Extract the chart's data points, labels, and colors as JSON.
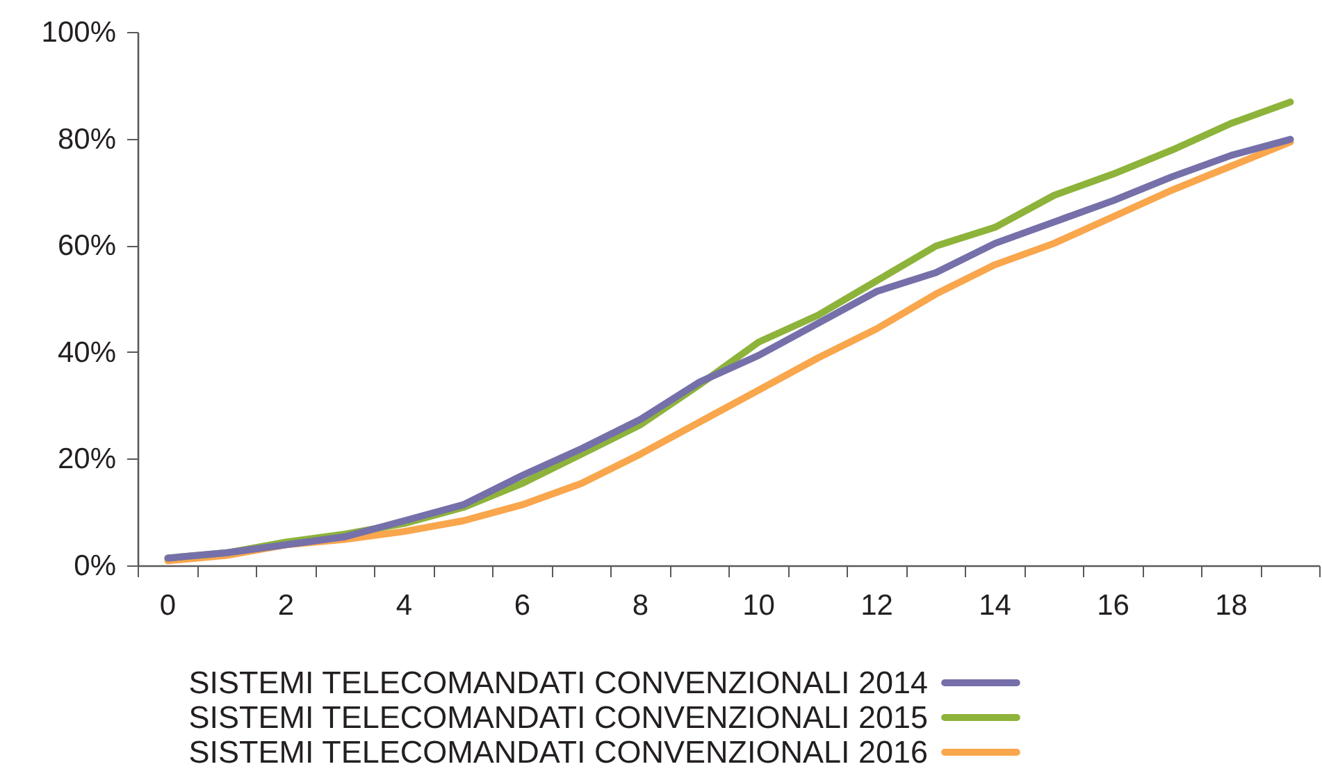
{
  "chart_data": {
    "type": "line",
    "categories": [
      "0",
      null,
      "2",
      null,
      "4",
      null,
      "6",
      null,
      "8",
      null,
      "10",
      null,
      "12",
      null,
      "14",
      null,
      "16",
      null,
      "18",
      null
    ],
    "series": [
      {
        "name": "SISTEMI TELECOMANDATI CONVENZIONALI 2014",
        "color": "#7570a9",
        "values": [
          1.5,
          2.5,
          4,
          5.5,
          8.5,
          11.5,
          17,
          22,
          27.5,
          34.5,
          39.5,
          45.5,
          51.5,
          55,
          60.5,
          64.5,
          68.5,
          73,
          77,
          80
        ]
      },
      {
        "name": "SISTEMI TELECOMANDATI CONVENZIONALI 2015",
        "color": "#8db33b",
        "values": [
          1.5,
          2.5,
          4.5,
          6,
          8,
          11,
          15.5,
          21,
          26.5,
          34,
          42,
          47,
          53.5,
          60,
          63.5,
          69.5,
          73.5,
          78,
          83,
          87
        ]
      },
      {
        "name": "SISTEMI TELECOMANDATI CONVENZIONALI 2016",
        "color": "#f9a64c",
        "values": [
          1,
          2,
          4,
          5,
          6.5,
          8.5,
          11.5,
          15.5,
          21,
          27,
          33,
          39,
          44.5,
          51,
          56.5,
          60.5,
          65.5,
          70.5,
          75,
          79.5
        ]
      }
    ],
    "ylim": [
      0,
      100
    ],
    "yticks": [
      {
        "value": 0,
        "label": "0%"
      },
      {
        "value": 20,
        "label": "20%"
      },
      {
        "value": 40,
        "label": "40%"
      },
      {
        "value": 60,
        "label": "60%"
      },
      {
        "value": 80,
        "label": "80%"
      },
      {
        "value": 100,
        "label": "100%"
      }
    ],
    "grid": false,
    "legend": "bottom",
    "line_style": "solid"
  }
}
